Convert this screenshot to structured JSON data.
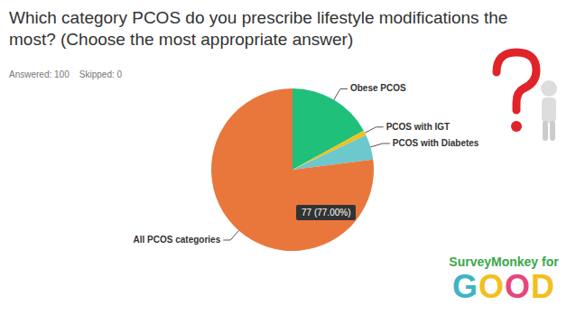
{
  "chart_data": {
    "type": "pie",
    "title": "Which category PCOS do you prescribe lifestyle modifications the most? (Choose the most appropriate answer)",
    "subtitle": "Answered: 100    Skipped: 0",
    "categories": [
      "Obese PCOS",
      "PCOS with IGT",
      "PCOS with Diabetes",
      "All PCOS categories"
    ],
    "values": [
      17,
      1,
      5,
      77
    ],
    "colors": [
      "#1fc07a",
      "#f2c01e",
      "#6cc8cc",
      "#e9773c"
    ],
    "annotation": "77 (77.00%)",
    "logo": [
      "SurveyMonkey for",
      "GOOD"
    ]
  }
}
